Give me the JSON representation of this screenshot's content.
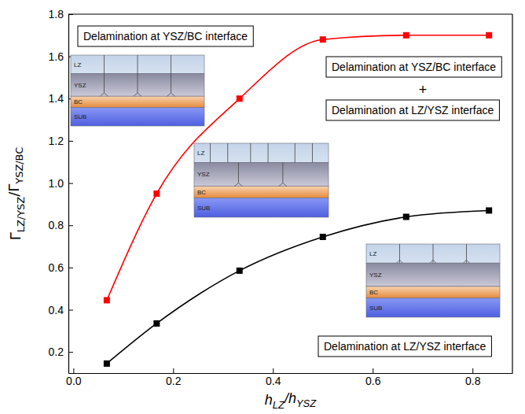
{
  "chart_data": {
    "type": "line",
    "x": [
      0.067,
      0.167,
      0.333,
      0.5,
      0.667,
      0.833
    ],
    "series": [
      {
        "color": "#ff0000",
        "marker": "square",
        "line_style": "solid",
        "values": [
          0.445,
          0.95,
          1.4,
          1.68,
          1.7,
          1.7
        ]
      },
      {
        "color": "#000000",
        "marker": "square",
        "line_style": "solid",
        "values": [
          0.145,
          0.335,
          0.585,
          0.745,
          0.84,
          0.87
        ]
      }
    ],
    "xlabel": [
      "h",
      "LZ",
      "/h",
      "YSZ"
    ],
    "ylabel": [
      "Γ",
      "LZ/YSZ",
      "/Γ",
      "YSZ/BC"
    ],
    "xlim": [
      -0.01,
      0.88
    ],
    "ylim": [
      0.1,
      1.8
    ],
    "xticks": [
      {
        "value": 0,
        "label": "0.0"
      },
      0.2,
      0.4,
      0.6,
      0.8
    ],
    "yticks": [
      0.2,
      0.4,
      0.6,
      0.8,
      {
        "value": 1,
        "label": "1.0"
      },
      1.2,
      1.4,
      1.6,
      1.8
    ],
    "annotations": [
      "Delamination at YSZ/BC interface",
      "Delamination at YSZ/BC interface",
      "+",
      "Delamination at LZ/YSZ interface",
      "Delamination at LZ/YSZ interface"
    ],
    "insets": [
      {
        "layers": [
          "LZ",
          "YSZ",
          "BC",
          "SUB"
        ]
      },
      {
        "layers": [
          "LZ",
          "YSZ",
          "BC",
          "SUB"
        ]
      },
      {
        "layers": [
          "LZ",
          "YSZ",
          "BC",
          "SUB"
        ]
      }
    ]
  }
}
